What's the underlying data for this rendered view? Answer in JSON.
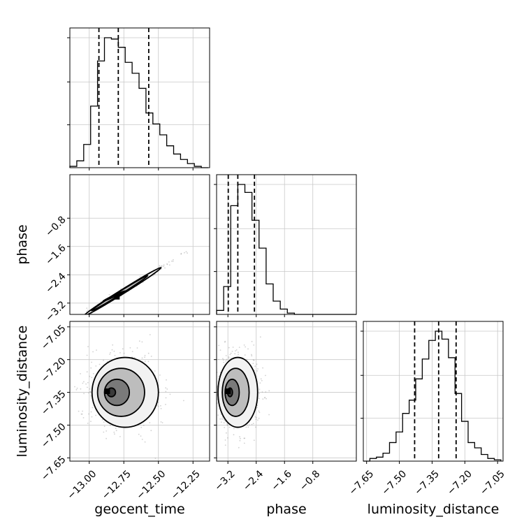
{
  "chart_data": {
    "type": "corner",
    "parameters": [
      "geocent_time",
      "phase",
      "luminosity_distance"
    ],
    "axes": {
      "geocent_time": {
        "label": "geocent_time",
        "range": [
          -13.14,
          -12.13
        ],
        "ticks": [
          -13.0,
          -12.75,
          -12.5,
          -12.25
        ],
        "tick_labels": [
          "−13.00",
          "−12.75",
          "−12.50",
          "−12.25"
        ]
      },
      "phase": {
        "label": "phase",
        "range": [
          -3.52,
          0.43
        ],
        "ticks": [
          -3.2,
          -2.4,
          -1.6,
          -0.8
        ],
        "tick_labels": [
          "−3.2",
          "−2.4",
          "−1.6",
          "−0.8"
        ]
      },
      "luminosity_distance": {
        "label": "luminosity_distance",
        "range": [
          -7.665,
          -7.025
        ],
        "ticks": [
          -7.65,
          -7.5,
          -7.35,
          -7.2,
          -7.05
        ],
        "tick_labels": [
          "−7.65",
          "−7.50",
          "−7.35",
          "−7.20",
          "−7.05"
        ]
      }
    },
    "histograms": {
      "geocent_time": {
        "bin_edges": [
          -13.14,
          -13.09,
          -13.04,
          -12.99,
          -12.94,
          -12.89,
          -12.84,
          -12.79,
          -12.74,
          -12.69,
          -12.64,
          -12.59,
          -12.54,
          -12.49,
          -12.44,
          -12.39,
          -12.34,
          -12.29,
          -12.24,
          -12.19,
          -12.14
        ],
        "counts": [
          0.01,
          0.05,
          0.17,
          0.45,
          0.78,
          0.95,
          0.94,
          0.88,
          0.77,
          0.69,
          0.58,
          0.4,
          0.32,
          0.24,
          0.16,
          0.1,
          0.06,
          0.03,
          0.01,
          0.0
        ],
        "quantiles": [
          -12.93,
          -12.79,
          -12.57
        ]
      },
      "phase": {
        "bin_edges": [
          -3.52,
          -3.32,
          -3.12,
          -2.92,
          -2.72,
          -2.52,
          -2.32,
          -2.12,
          -1.92,
          -1.72,
          -1.52,
          -1.32,
          -1.12,
          -0.92,
          -0.72,
          -0.52,
          -0.32,
          -0.12,
          0.08,
          0.28,
          0.43
        ],
        "counts": [
          0.03,
          0.21,
          0.82,
          0.98,
          0.92,
          0.71,
          0.5,
          0.23,
          0.1,
          0.04,
          0.01,
          0.0,
          0.0,
          0.0,
          0.0,
          0.0,
          0.0,
          0.0,
          0.0,
          0.0
        ],
        "quantiles": [
          -3.19,
          -2.92,
          -2.45
        ]
      },
      "luminosity_distance": {
        "bin_edges": [
          -7.665,
          -7.635,
          -7.605,
          -7.575,
          -7.545,
          -7.515,
          -7.485,
          -7.455,
          -7.425,
          -7.395,
          -7.365,
          -7.335,
          -7.305,
          -7.275,
          -7.245,
          -7.215,
          -7.185,
          -7.155,
          -7.125,
          -7.095,
          -7.065,
          -7.035
        ],
        "counts": [
          0.0,
          0.02,
          0.03,
          0.06,
          0.14,
          0.22,
          0.36,
          0.46,
          0.62,
          0.77,
          0.91,
          0.98,
          0.92,
          0.78,
          0.51,
          0.3,
          0.14,
          0.1,
          0.05,
          0.02,
          0.01
        ],
        "quantiles": [
          -7.43,
          -7.32,
          -7.24
        ]
      }
    },
    "pairs": [
      {
        "x": "geocent_time",
        "y": "phase",
        "contours": [
          {
            "cx": -12.76,
            "cy": -2.88,
            "rx": 0.33,
            "ry": 0.06,
            "angle": 32
          },
          {
            "cx": -12.78,
            "cy": -2.92,
            "rx": 0.24,
            "ry": 0.04,
            "angle": 32
          },
          {
            "cx": -12.82,
            "cy": -3.0,
            "rx": 0.09,
            "ry": 0.02,
            "angle": 25
          }
        ],
        "peak": [
          -12.8,
          -3.02
        ]
      },
      {
        "x": "geocent_time",
        "y": "luminosity_distance",
        "contours": [
          {
            "cx": -12.74,
            "cy": -7.35,
            "rx": 0.24,
            "ry": 0.16,
            "angle": 0
          },
          {
            "cx": -12.77,
            "cy": -7.35,
            "rx": 0.17,
            "ry": 0.11,
            "angle": 0
          },
          {
            "cx": -12.8,
            "cy": -7.35,
            "rx": 0.09,
            "ry": 0.06,
            "angle": 0
          },
          {
            "cx": -12.84,
            "cy": -7.35,
            "rx": 0.03,
            "ry": 0.02,
            "angle": 0
          }
        ],
        "peak": [
          -12.87,
          -7.345
        ]
      },
      {
        "x": "phase",
        "y": "luminosity_distance",
        "contours": [
          {
            "cx": -2.92,
            "cy": -7.35,
            "rx": 0.56,
            "ry": 0.16,
            "angle": 0
          },
          {
            "cx": -2.98,
            "cy": -7.35,
            "rx": 0.38,
            "ry": 0.11,
            "angle": 0
          },
          {
            "cx": -3.08,
            "cy": -7.35,
            "rx": 0.2,
            "ry": 0.06,
            "angle": 0
          },
          {
            "cx": -3.14,
            "cy": -7.35,
            "rx": 0.07,
            "ry": 0.02,
            "angle": 0
          }
        ],
        "peak": [
          -3.2,
          -7.345
        ]
      }
    ],
    "grid": true,
    "legend": "none"
  }
}
